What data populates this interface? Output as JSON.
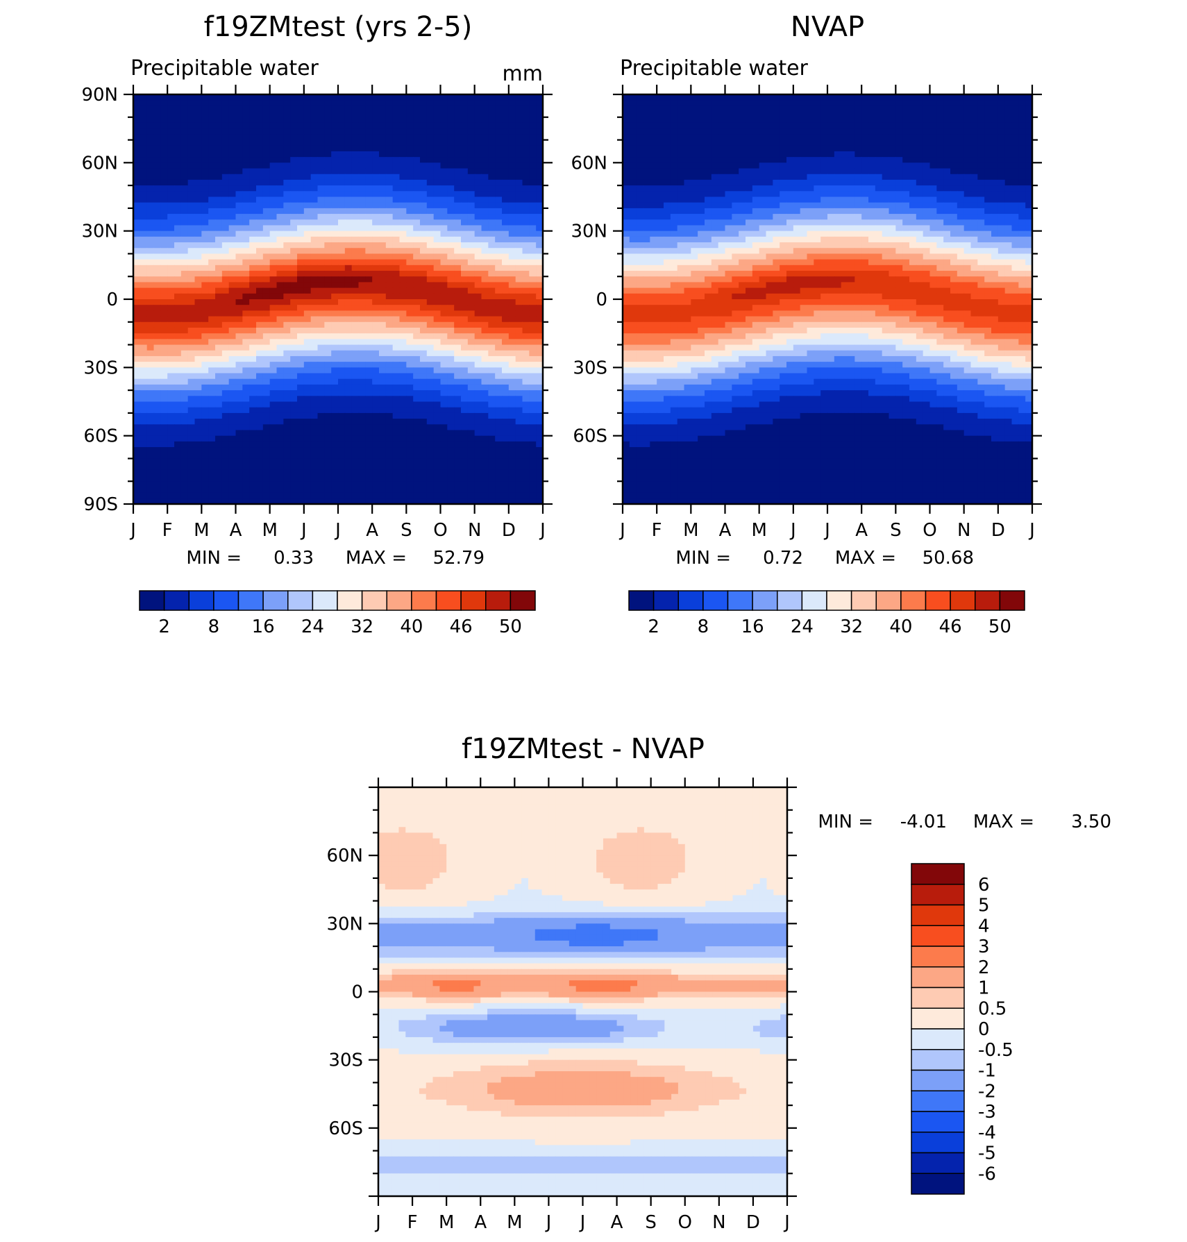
{
  "months": [
    "J",
    "F",
    "M",
    "A",
    "M",
    "J",
    "J",
    "A",
    "S",
    "O",
    "N",
    "D",
    "J"
  ],
  "palette_pw": [
    "#00137e",
    "#0423ad",
    "#0a3fda",
    "#1b56f2",
    "#3f77f8",
    "#7ca0f8",
    "#b0c6fc",
    "#dbe9fb",
    "#feeadb",
    "#fecbb3",
    "#fca785",
    "#fc7b4c",
    "#f84e1f",
    "#e0380c",
    "#b81c0c",
    "#820709"
  ],
  "palette_diff": [
    "#820709",
    "#b81c0c",
    "#e0380c",
    "#f84e1f",
    "#fc7b4c",
    "#fca785",
    "#fecbb3",
    "#feeadb",
    "#dbe9fb",
    "#b0c6fc",
    "#7ca0f8",
    "#3f77f8",
    "#1b56f2",
    "#0a3fda",
    "#0423ad",
    "#00137e"
  ],
  "chart_data": [
    {
      "type": "heatmap",
      "id": "model",
      "title": "f19ZMtest (yrs 2-5)",
      "subtitle": "Precipitable water",
      "units": "mm",
      "ylabel_ticks": [
        "90N",
        "60N",
        "30N",
        "0",
        "30S",
        "60S",
        "90S"
      ],
      "xlabel_ticks": [
        "J",
        "F",
        "M",
        "A",
        "M",
        "J",
        "J",
        "A",
        "S",
        "O",
        "N",
        "D",
        "J"
      ],
      "ylim": [
        -90,
        90
      ],
      "min_label": "MIN =",
      "min_value": "0.33",
      "max_label": "MAX =",
      "max_value": "52.79",
      "colorbar_labels": [
        "2",
        "8",
        "16",
        "24",
        "32",
        "40",
        "46",
        "50"
      ],
      "peak_value": 52.79,
      "peak_latitude": 5
    },
    {
      "type": "heatmap",
      "id": "obs",
      "title": "NVAP",
      "subtitle": "Precipitable water",
      "ylabel_ticks": [
        "60N",
        "30N",
        "0",
        "30S",
        "60S"
      ],
      "xlabel_ticks": [
        "J",
        "F",
        "M",
        "A",
        "M",
        "J",
        "J",
        "A",
        "S",
        "O",
        "N",
        "D",
        "J"
      ],
      "ylim": [
        -90,
        90
      ],
      "min_label": "MIN =",
      "min_value": "0.72",
      "max_label": "MAX =",
      "max_value": "50.68",
      "colorbar_labels": [
        "2",
        "8",
        "16",
        "24",
        "32",
        "40",
        "46",
        "50"
      ],
      "peak_value": 50.68,
      "peak_latitude": 5
    },
    {
      "type": "heatmap",
      "id": "diff",
      "title": "f19ZMtest - NVAP",
      "ylabel_ticks": [
        "60N",
        "30N",
        "0",
        "30S",
        "60S"
      ],
      "xlabel_ticks": [
        "J",
        "F",
        "M",
        "A",
        "M",
        "J",
        "J",
        "A",
        "S",
        "O",
        "N",
        "D",
        "J"
      ],
      "ylim": [
        -90,
        90
      ],
      "min_label": "MIN =",
      "min_value": "-4.01",
      "max_label": "MAX =",
      "max_value": "3.50",
      "colorbar_labels": [
        "6",
        "5",
        "4",
        "3",
        "2",
        "1",
        "0.5",
        "0",
        "-0.5",
        "-1",
        "-2",
        "-3",
        "-4",
        "-5",
        "-6"
      ]
    }
  ]
}
